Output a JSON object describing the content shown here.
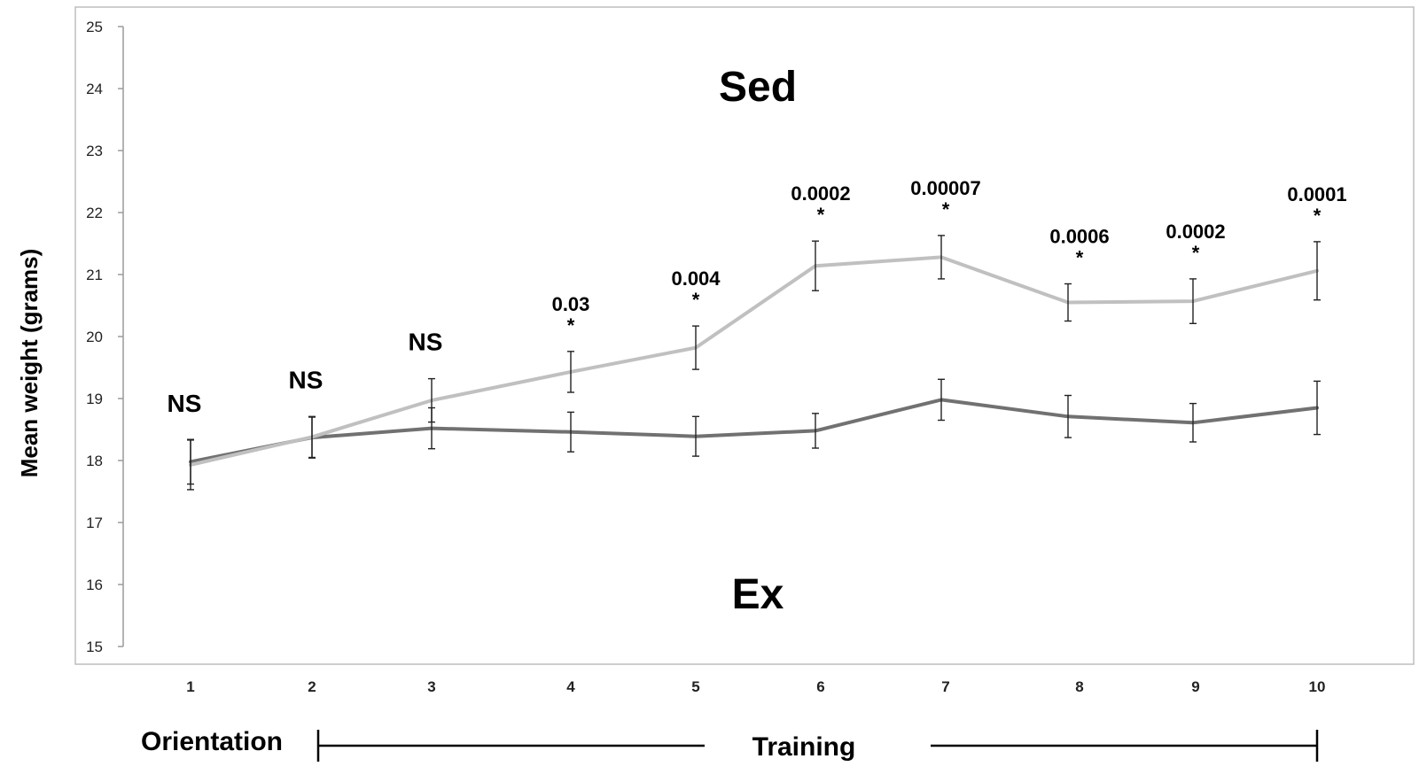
{
  "chart_data": {
    "type": "line",
    "ylabel": "Mean weight (grams)",
    "ylim": [
      15,
      25
    ],
    "yticks": [
      15,
      16,
      17,
      18,
      19,
      20,
      21,
      22,
      23,
      24,
      25
    ],
    "x": [
      1,
      2,
      3,
      4,
      5,
      6,
      7,
      8,
      9,
      10
    ],
    "series": [
      {
        "name": "Sed",
        "color": "#c0c0c0",
        "values": [
          17.93,
          18.38,
          18.97,
          19.43,
          19.82,
          21.14,
          21.28,
          20.55,
          20.57,
          21.06
        ],
        "errors": [
          0.4,
          0.33,
          0.35,
          0.33,
          0.35,
          0.4,
          0.35,
          0.3,
          0.36,
          0.47
        ]
      },
      {
        "name": "Ex",
        "color": "#717171",
        "values": [
          17.98,
          18.37,
          18.52,
          18.46,
          18.39,
          18.48,
          18.98,
          18.71,
          18.61,
          18.85
        ],
        "errors": [
          0.36,
          0.33,
          0.33,
          0.32,
          0.32,
          0.28,
          0.33,
          0.34,
          0.31,
          0.43
        ]
      }
    ],
    "annotations": [
      {
        "x": 1,
        "label": "NS",
        "star": ""
      },
      {
        "x": 2,
        "label": "NS",
        "star": ""
      },
      {
        "x": 3,
        "label": "NS",
        "star": ""
      },
      {
        "x": 4,
        "label": "0.03",
        "star": "*"
      },
      {
        "x": 5,
        "label": "0.004",
        "star": "*"
      },
      {
        "x": 6,
        "label": "0.0002",
        "star": "*"
      },
      {
        "x": 7,
        "label": "0.00007",
        "star": "*"
      },
      {
        "x": 8,
        "label": "0.0006",
        "star": "*"
      },
      {
        "x": 9,
        "label": "0.0002",
        "star": "*"
      },
      {
        "x": 10,
        "label": "0.0001",
        "star": "*"
      }
    ],
    "phases": {
      "orientation": "Orientation",
      "training": "Training"
    },
    "grid": false,
    "legend": "none"
  }
}
